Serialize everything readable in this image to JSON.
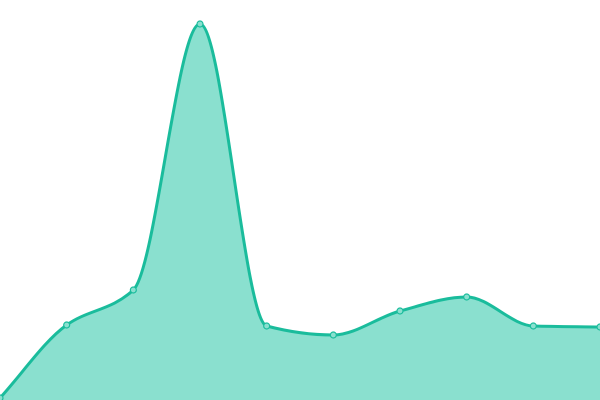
{
  "chart_data": {
    "type": "area",
    "title": "",
    "xlabel": "",
    "ylabel": "",
    "x": [
      0,
      1,
      2,
      3,
      4,
      5,
      6,
      7,
      8,
      9
    ],
    "values": [
      2,
      75,
      110,
      376,
      74,
      65,
      89,
      103,
      74,
      73
    ],
    "ylim": [
      0,
      400
    ],
    "grid": false,
    "legend": "none",
    "smooth": true,
    "markers": true,
    "colors": {
      "line": "#1abc9c",
      "fill": "#8ae0cf",
      "marker_fill": "#8ae0cf",
      "background": "#ffffff"
    }
  }
}
